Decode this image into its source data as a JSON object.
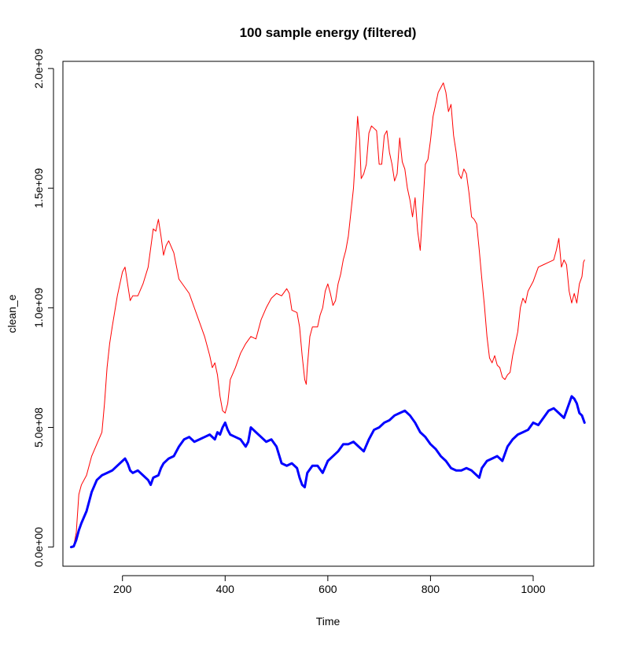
{
  "chart_data": {
    "type": "line",
    "title": "100 sample energy (filtered)",
    "xlabel": "Time",
    "ylabel": "clean_e",
    "xlim": [
      84,
      1118
    ],
    "ylim": [
      -80000000,
      2030000000
    ],
    "x_ticks": [
      200,
      400,
      600,
      800,
      1000
    ],
    "x_tick_labels": [
      "200",
      "400",
      "600",
      "800",
      "1000"
    ],
    "y_ticks": [
      0,
      500000000,
      1000000000,
      1500000000,
      2000000000
    ],
    "y_tick_labels": [
      "0.0e+00",
      "5.0e+08",
      "1.0e+09",
      "1.5e+09",
      "2.0e+09"
    ],
    "grid": false,
    "legend": "none",
    "series": [
      {
        "color": "#ff0000",
        "line_width": 1,
        "points": [
          [
            100,
            0
          ],
          [
            105,
            5000000
          ],
          [
            110,
            60000000
          ],
          [
            115,
            220000000
          ],
          [
            120,
            260000000
          ],
          [
            130,
            300000000
          ],
          [
            140,
            380000000
          ],
          [
            150,
            430000000
          ],
          [
            160,
            480000000
          ],
          [
            165,
            600000000
          ],
          [
            170,
            750000000
          ],
          [
            175,
            850000000
          ],
          [
            180,
            920000000
          ],
          [
            190,
            1050000000
          ],
          [
            200,
            1150000000
          ],
          [
            205,
            1170000000
          ],
          [
            210,
            1100000000
          ],
          [
            215,
            1030000000
          ],
          [
            220,
            1050000000
          ],
          [
            230,
            1050000000
          ],
          [
            240,
            1100000000
          ],
          [
            250,
            1170000000
          ],
          [
            255,
            1250000000
          ],
          [
            260,
            1330000000
          ],
          [
            265,
            1320000000
          ],
          [
            270,
            1370000000
          ],
          [
            275,
            1300000000
          ],
          [
            280,
            1220000000
          ],
          [
            285,
            1260000000
          ],
          [
            290,
            1280000000
          ],
          [
            300,
            1230000000
          ],
          [
            310,
            1120000000
          ],
          [
            320,
            1090000000
          ],
          [
            330,
            1060000000
          ],
          [
            340,
            1000000000
          ],
          [
            350,
            940000000
          ],
          [
            360,
            880000000
          ],
          [
            370,
            800000000
          ],
          [
            375,
            750000000
          ],
          [
            380,
            770000000
          ],
          [
            385,
            720000000
          ],
          [
            390,
            630000000
          ],
          [
            395,
            570000000
          ],
          [
            400,
            560000000
          ],
          [
            405,
            600000000
          ],
          [
            410,
            700000000
          ],
          [
            420,
            750000000
          ],
          [
            430,
            810000000
          ],
          [
            440,
            850000000
          ],
          [
            450,
            880000000
          ],
          [
            460,
            870000000
          ],
          [
            470,
            950000000
          ],
          [
            480,
            1000000000
          ],
          [
            490,
            1040000000
          ],
          [
            500,
            1060000000
          ],
          [
            510,
            1050000000
          ],
          [
            520,
            1080000000
          ],
          [
            525,
            1060000000
          ],
          [
            530,
            990000000
          ],
          [
            540,
            980000000
          ],
          [
            545,
            920000000
          ],
          [
            550,
            800000000
          ],
          [
            555,
            700000000
          ],
          [
            558,
            680000000
          ],
          [
            560,
            750000000
          ],
          [
            565,
            880000000
          ],
          [
            570,
            920000000
          ],
          [
            580,
            920000000
          ],
          [
            585,
            970000000
          ],
          [
            590,
            1000000000
          ],
          [
            595,
            1070000000
          ],
          [
            600,
            1100000000
          ],
          [
            605,
            1060000000
          ],
          [
            610,
            1010000000
          ],
          [
            615,
            1030000000
          ],
          [
            620,
            1100000000
          ],
          [
            625,
            1140000000
          ],
          [
            630,
            1200000000
          ],
          [
            635,
            1240000000
          ],
          [
            640,
            1300000000
          ],
          [
            645,
            1400000000
          ],
          [
            650,
            1500000000
          ],
          [
            655,
            1680000000
          ],
          [
            658,
            1800000000
          ],
          [
            662,
            1700000000
          ],
          [
            665,
            1540000000
          ],
          [
            670,
            1560000000
          ],
          [
            675,
            1600000000
          ],
          [
            680,
            1730000000
          ],
          [
            685,
            1760000000
          ],
          [
            690,
            1750000000
          ],
          [
            695,
            1740000000
          ],
          [
            700,
            1600000000
          ],
          [
            705,
            1600000000
          ],
          [
            710,
            1720000000
          ],
          [
            715,
            1740000000
          ],
          [
            720,
            1650000000
          ],
          [
            725,
            1600000000
          ],
          [
            730,
            1530000000
          ],
          [
            735,
            1560000000
          ],
          [
            740,
            1710000000
          ],
          [
            745,
            1610000000
          ],
          [
            750,
            1580000000
          ],
          [
            755,
            1500000000
          ],
          [
            760,
            1450000000
          ],
          [
            765,
            1380000000
          ],
          [
            770,
            1460000000
          ],
          [
            775,
            1320000000
          ],
          [
            780,
            1240000000
          ],
          [
            785,
            1420000000
          ],
          [
            790,
            1600000000
          ],
          [
            795,
            1620000000
          ],
          [
            800,
            1700000000
          ],
          [
            805,
            1800000000
          ],
          [
            810,
            1850000000
          ],
          [
            815,
            1900000000
          ],
          [
            820,
            1920000000
          ],
          [
            825,
            1940000000
          ],
          [
            830,
            1900000000
          ],
          [
            835,
            1820000000
          ],
          [
            840,
            1850000000
          ],
          [
            845,
            1720000000
          ],
          [
            850,
            1650000000
          ],
          [
            855,
            1560000000
          ],
          [
            860,
            1540000000
          ],
          [
            865,
            1580000000
          ],
          [
            870,
            1560000000
          ],
          [
            875,
            1480000000
          ],
          [
            880,
            1380000000
          ],
          [
            885,
            1370000000
          ],
          [
            890,
            1350000000
          ],
          [
            895,
            1240000000
          ],
          [
            900,
            1120000000
          ],
          [
            905,
            1010000000
          ],
          [
            910,
            880000000
          ],
          [
            915,
            790000000
          ],
          [
            920,
            770000000
          ],
          [
            925,
            800000000
          ],
          [
            930,
            760000000
          ],
          [
            935,
            750000000
          ],
          [
            940,
            710000000
          ],
          [
            945,
            700000000
          ],
          [
            950,
            720000000
          ],
          [
            955,
            730000000
          ],
          [
            960,
            800000000
          ],
          [
            965,
            850000000
          ],
          [
            970,
            900000000
          ],
          [
            975,
            1000000000
          ],
          [
            980,
            1040000000
          ],
          [
            985,
            1020000000
          ],
          [
            990,
            1070000000
          ],
          [
            1000,
            1110000000
          ],
          [
            1010,
            1170000000
          ],
          [
            1020,
            1180000000
          ],
          [
            1030,
            1190000000
          ],
          [
            1040,
            1200000000
          ],
          [
            1045,
            1240000000
          ],
          [
            1050,
            1290000000
          ],
          [
            1055,
            1170000000
          ],
          [
            1060,
            1200000000
          ],
          [
            1065,
            1180000000
          ],
          [
            1070,
            1070000000
          ],
          [
            1075,
            1020000000
          ],
          [
            1080,
            1060000000
          ],
          [
            1085,
            1020000000
          ],
          [
            1090,
            1100000000
          ],
          [
            1095,
            1130000000
          ],
          [
            1098,
            1190000000
          ],
          [
            1100,
            1200000000
          ]
        ]
      },
      {
        "color": "#0000ff",
        "line_width": 3,
        "points": [
          [
            100,
            0
          ],
          [
            105,
            3000000
          ],
          [
            110,
            30000000
          ],
          [
            115,
            70000000
          ],
          [
            120,
            100000000
          ],
          [
            130,
            150000000
          ],
          [
            140,
            230000000
          ],
          [
            150,
            280000000
          ],
          [
            160,
            300000000
          ],
          [
            170,
            310000000
          ],
          [
            180,
            320000000
          ],
          [
            190,
            340000000
          ],
          [
            200,
            360000000
          ],
          [
            205,
            370000000
          ],
          [
            210,
            350000000
          ],
          [
            215,
            320000000
          ],
          [
            220,
            310000000
          ],
          [
            230,
            320000000
          ],
          [
            240,
            300000000
          ],
          [
            250,
            280000000
          ],
          [
            255,
            260000000
          ],
          [
            260,
            290000000
          ],
          [
            270,
            300000000
          ],
          [
            275,
            330000000
          ],
          [
            280,
            350000000
          ],
          [
            290,
            370000000
          ],
          [
            300,
            380000000
          ],
          [
            310,
            420000000
          ],
          [
            320,
            450000000
          ],
          [
            330,
            460000000
          ],
          [
            340,
            440000000
          ],
          [
            350,
            450000000
          ],
          [
            360,
            460000000
          ],
          [
            370,
            470000000
          ],
          [
            380,
            450000000
          ],
          [
            385,
            480000000
          ],
          [
            390,
            470000000
          ],
          [
            395,
            500000000
          ],
          [
            400,
            520000000
          ],
          [
            405,
            490000000
          ],
          [
            410,
            470000000
          ],
          [
            420,
            460000000
          ],
          [
            430,
            450000000
          ],
          [
            440,
            420000000
          ],
          [
            445,
            440000000
          ],
          [
            450,
            500000000
          ],
          [
            460,
            480000000
          ],
          [
            470,
            460000000
          ],
          [
            480,
            440000000
          ],
          [
            490,
            450000000
          ],
          [
            500,
            420000000
          ],
          [
            510,
            350000000
          ],
          [
            520,
            340000000
          ],
          [
            530,
            350000000
          ],
          [
            540,
            330000000
          ],
          [
            545,
            290000000
          ],
          [
            550,
            260000000
          ],
          [
            555,
            250000000
          ],
          [
            560,
            310000000
          ],
          [
            570,
            340000000
          ],
          [
            580,
            340000000
          ],
          [
            590,
            310000000
          ],
          [
            600,
            360000000
          ],
          [
            610,
            380000000
          ],
          [
            620,
            400000000
          ],
          [
            630,
            430000000
          ],
          [
            640,
            430000000
          ],
          [
            650,
            440000000
          ],
          [
            660,
            420000000
          ],
          [
            670,
            400000000
          ],
          [
            680,
            450000000
          ],
          [
            690,
            490000000
          ],
          [
            700,
            500000000
          ],
          [
            710,
            520000000
          ],
          [
            720,
            530000000
          ],
          [
            730,
            550000000
          ],
          [
            740,
            560000000
          ],
          [
            750,
            570000000
          ],
          [
            760,
            550000000
          ],
          [
            770,
            520000000
          ],
          [
            780,
            480000000
          ],
          [
            790,
            460000000
          ],
          [
            800,
            430000000
          ],
          [
            810,
            410000000
          ],
          [
            820,
            380000000
          ],
          [
            830,
            360000000
          ],
          [
            840,
            330000000
          ],
          [
            850,
            320000000
          ],
          [
            860,
            320000000
          ],
          [
            870,
            330000000
          ],
          [
            880,
            320000000
          ],
          [
            890,
            300000000
          ],
          [
            895,
            290000000
          ],
          [
            900,
            330000000
          ],
          [
            910,
            360000000
          ],
          [
            920,
            370000000
          ],
          [
            930,
            380000000
          ],
          [
            940,
            360000000
          ],
          [
            950,
            420000000
          ],
          [
            960,
            450000000
          ],
          [
            970,
            470000000
          ],
          [
            980,
            480000000
          ],
          [
            990,
            490000000
          ],
          [
            1000,
            520000000
          ],
          [
            1010,
            510000000
          ],
          [
            1020,
            540000000
          ],
          [
            1030,
            570000000
          ],
          [
            1040,
            580000000
          ],
          [
            1050,
            560000000
          ],
          [
            1060,
            540000000
          ],
          [
            1065,
            570000000
          ],
          [
            1070,
            600000000
          ],
          [
            1075,
            630000000
          ],
          [
            1080,
            620000000
          ],
          [
            1085,
            600000000
          ],
          [
            1090,
            560000000
          ],
          [
            1095,
            550000000
          ],
          [
            1100,
            520000000
          ]
        ]
      }
    ]
  }
}
